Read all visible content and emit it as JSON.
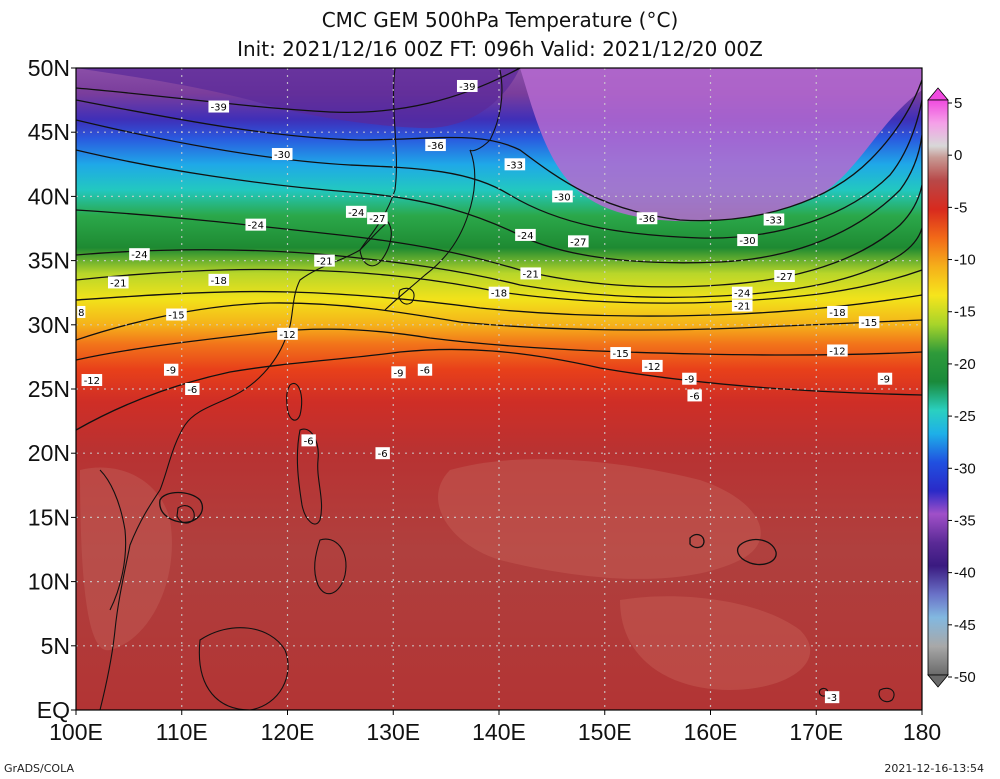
{
  "title": {
    "line1": "CMC GEM 500hPa Temperature (°C)",
    "line2": "Init: 2021/12/16 00Z  FT: 096h  Valid: 2021/12/20 00Z"
  },
  "map": {
    "lon_range": [
      100,
      180
    ],
    "lat_range": [
      0,
      50
    ],
    "lat_labels": [
      "50N",
      "45N",
      "40N",
      "35N",
      "30N",
      "25N",
      "20N",
      "15N",
      "10N",
      "5N",
      "EQ"
    ],
    "lon_labels": [
      "100E",
      "110E",
      "120E",
      "130E",
      "140E",
      "150E",
      "160E",
      "170E",
      "180"
    ],
    "grid": "dotted"
  },
  "colorbar": {
    "tick_labels": [
      "5",
      "0",
      "-5",
      "-10",
      "-15",
      "-20",
      "-25",
      "-30",
      "-35",
      "-40",
      "-45",
      "-50"
    ]
  },
  "contour_labels": [
    {
      "text": "-39",
      "lon": 113.5,
      "lat": 47.0
    },
    {
      "text": "-39",
      "lon": 137.0,
      "lat": 48.6
    },
    {
      "text": "-36",
      "lon": 134.0,
      "lat": 44.0
    },
    {
      "text": "-33",
      "lon": 141.5,
      "lat": 42.5
    },
    {
      "text": "-30",
      "lon": 119.5,
      "lat": 43.3
    },
    {
      "text": "-27",
      "lon": 128.5,
      "lat": 38.3
    },
    {
      "text": "-24",
      "lon": 117.0,
      "lat": 37.8
    },
    {
      "text": "-24",
      "lon": 106.0,
      "lat": 35.5
    },
    {
      "text": "-24",
      "lon": 126.5,
      "lat": 38.8
    },
    {
      "text": "-24",
      "lon": 142.5,
      "lat": 37.0
    },
    {
      "text": "-21",
      "lon": 123.5,
      "lat": 35.0
    },
    {
      "text": "-21",
      "lon": 104.0,
      "lat": 33.3
    },
    {
      "text": "-21",
      "lon": 143.0,
      "lat": 34.0
    },
    {
      "text": "-18",
      "lon": 113.5,
      "lat": 33.5
    },
    {
      "text": "-18",
      "lon": 140.0,
      "lat": 32.5
    },
    {
      "text": "-15",
      "lon": 109.5,
      "lat": 30.8
    },
    {
      "text": "-12",
      "lon": 120.0,
      "lat": 29.3
    },
    {
      "text": "-30",
      "lon": 146.0,
      "lat": 40.0
    },
    {
      "text": "-27",
      "lon": 147.5,
      "lat": 36.5
    },
    {
      "text": "-36",
      "lon": 154.0,
      "lat": 38.3
    },
    {
      "text": "-33",
      "lon": 166.0,
      "lat": 38.2
    },
    {
      "text": "-30",
      "lon": 163.5,
      "lat": 36.6
    },
    {
      "text": "-27",
      "lon": 167.0,
      "lat": 33.8
    },
    {
      "text": "-24",
      "lon": 163.0,
      "lat": 32.5
    },
    {
      "text": "-21",
      "lon": 163.0,
      "lat": 31.5
    },
    {
      "text": "-18",
      "lon": 172.0,
      "lat": 31.0
    },
    {
      "text": "-15",
      "lon": 175.0,
      "lat": 30.2
    },
    {
      "text": "-15",
      "lon": 151.5,
      "lat": 27.8
    },
    {
      "text": "-12",
      "lon": 154.5,
      "lat": 26.8
    },
    {
      "text": "-12",
      "lon": 172.0,
      "lat": 28.0
    },
    {
      "text": "-9",
      "lon": 130.5,
      "lat": 26.3
    },
    {
      "text": "-9",
      "lon": 158.0,
      "lat": 25.8
    },
    {
      "text": "-9",
      "lon": 176.5,
      "lat": 25.8
    },
    {
      "text": "-9",
      "lon": 109.0,
      "lat": 26.5
    },
    {
      "text": "-12",
      "lon": 101.5,
      "lat": 25.7
    },
    {
      "text": "-6",
      "lon": 133.0,
      "lat": 26.5
    },
    {
      "text": "-6",
      "lon": 158.5,
      "lat": 24.5
    },
    {
      "text": "-6",
      "lon": 111.0,
      "lat": 25.0
    },
    {
      "text": "-6",
      "lon": 122.0,
      "lat": 21.0
    },
    {
      "text": "-6",
      "lon": 129.0,
      "lat": 20.0
    },
    {
      "text": "8",
      "lon": 100.5,
      "lat": 31.0
    },
    {
      "text": "-3",
      "lon": 171.5,
      "lat": 1.0
    }
  ],
  "footer": {
    "left": "GrADS/COLA",
    "right": "2021-12-16-13:54"
  }
}
